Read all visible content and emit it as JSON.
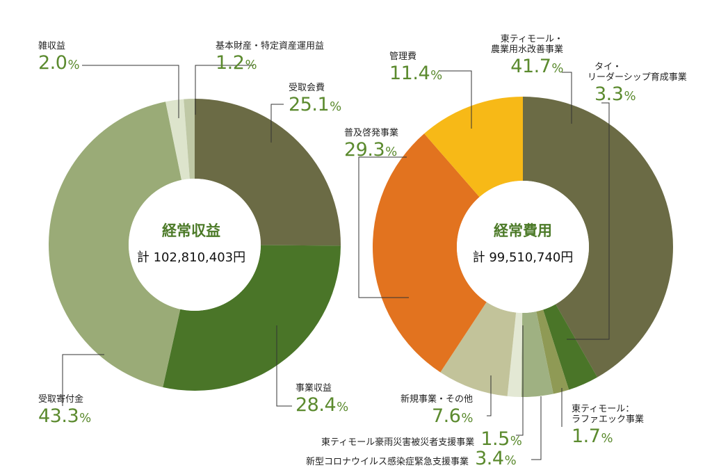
{
  "chart_data": [
    {
      "type": "pie",
      "title": "経常収益",
      "total_label": "計 102,810,403円",
      "slices": [
        {
          "label": "受取会費",
          "value": 25.1,
          "display": "25.1",
          "color": "#6b6b45"
        },
        {
          "label": "事業収益",
          "value": 28.4,
          "display": "28.4",
          "color": "#4a7528"
        },
        {
          "label": "受取寄付金",
          "value": 43.3,
          "display": "43.3",
          "color": "#9aab77"
        },
        {
          "label": "雑収益",
          "value": 2.0,
          "display": "2.0",
          "color": "#dde4cc"
        },
        {
          "label": "基本財産・特定資産運用益",
          "value": 1.2,
          "display": "1.2",
          "color": "#bfc8a5"
        }
      ]
    },
    {
      "type": "pie",
      "title": "経常費用",
      "total_label": "計 99,510,740円",
      "slices": [
        {
          "label": "東ティモール・農業用水改善事業",
          "value": 41.7,
          "display": "41.7",
          "color": "#6b6b45"
        },
        {
          "label": "タイ・リーダーシップ育成事業",
          "value": 3.3,
          "display": "3.3",
          "color": "#4a7528"
        },
        {
          "label": "東ティモール：ラファエック事業",
          "value": 1.7,
          "display": "1.7",
          "color": "#8f9a55"
        },
        {
          "label": "新型コロナウイルス感染症緊急支援事業",
          "value": 3.4,
          "display": "3.4",
          "color": "#9fb182"
        },
        {
          "label": "東ティモール豪雨災害被災者支援事業",
          "value": 1.5,
          "display": "1.5",
          "color": "#e3e8d4"
        },
        {
          "label": "新規事業・その他",
          "value": 7.6,
          "display": "7.6",
          "color": "#c2c39a"
        },
        {
          "label": "普及啓発事業",
          "value": 29.3,
          "display": "29.3",
          "color": "#e2731f"
        },
        {
          "label": "管理費",
          "value": 11.4,
          "display": "11.4",
          "color": "#f7b917"
        }
      ]
    }
  ],
  "unit": "%"
}
